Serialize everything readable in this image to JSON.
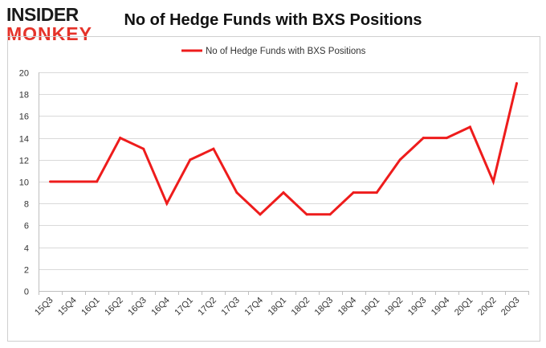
{
  "logo": {
    "line1": "INSIDER",
    "line2": "MONKEY"
  },
  "chart_data": {
    "type": "line",
    "title": "No of Hedge Funds with BXS Positions",
    "xlabel": "",
    "ylabel": "",
    "categories": [
      "15Q3",
      "15Q4",
      "16Q1",
      "16Q2",
      "16Q3",
      "16Q4",
      "17Q1",
      "17Q2",
      "17Q3",
      "17Q4",
      "18Q1",
      "18Q2",
      "18Q3",
      "18Q4",
      "19Q1",
      "19Q2",
      "19Q3",
      "19Q4",
      "20Q1",
      "20Q2",
      "20Q3"
    ],
    "series": [
      {
        "name": "No of Hedge Funds with BXS Positions",
        "values": [
          10,
          10,
          10,
          14,
          13,
          8,
          12,
          13,
          9,
          7,
          9,
          7,
          7,
          9,
          9,
          12,
          14,
          14,
          15,
          10,
          19
        ],
        "color": "#ee1c1c"
      }
    ],
    "ylim": [
      0,
      20
    ],
    "yticks": [
      0,
      2,
      4,
      6,
      8,
      10,
      12,
      14,
      16,
      18,
      20
    ],
    "grid": true,
    "legend": "top-center"
  }
}
